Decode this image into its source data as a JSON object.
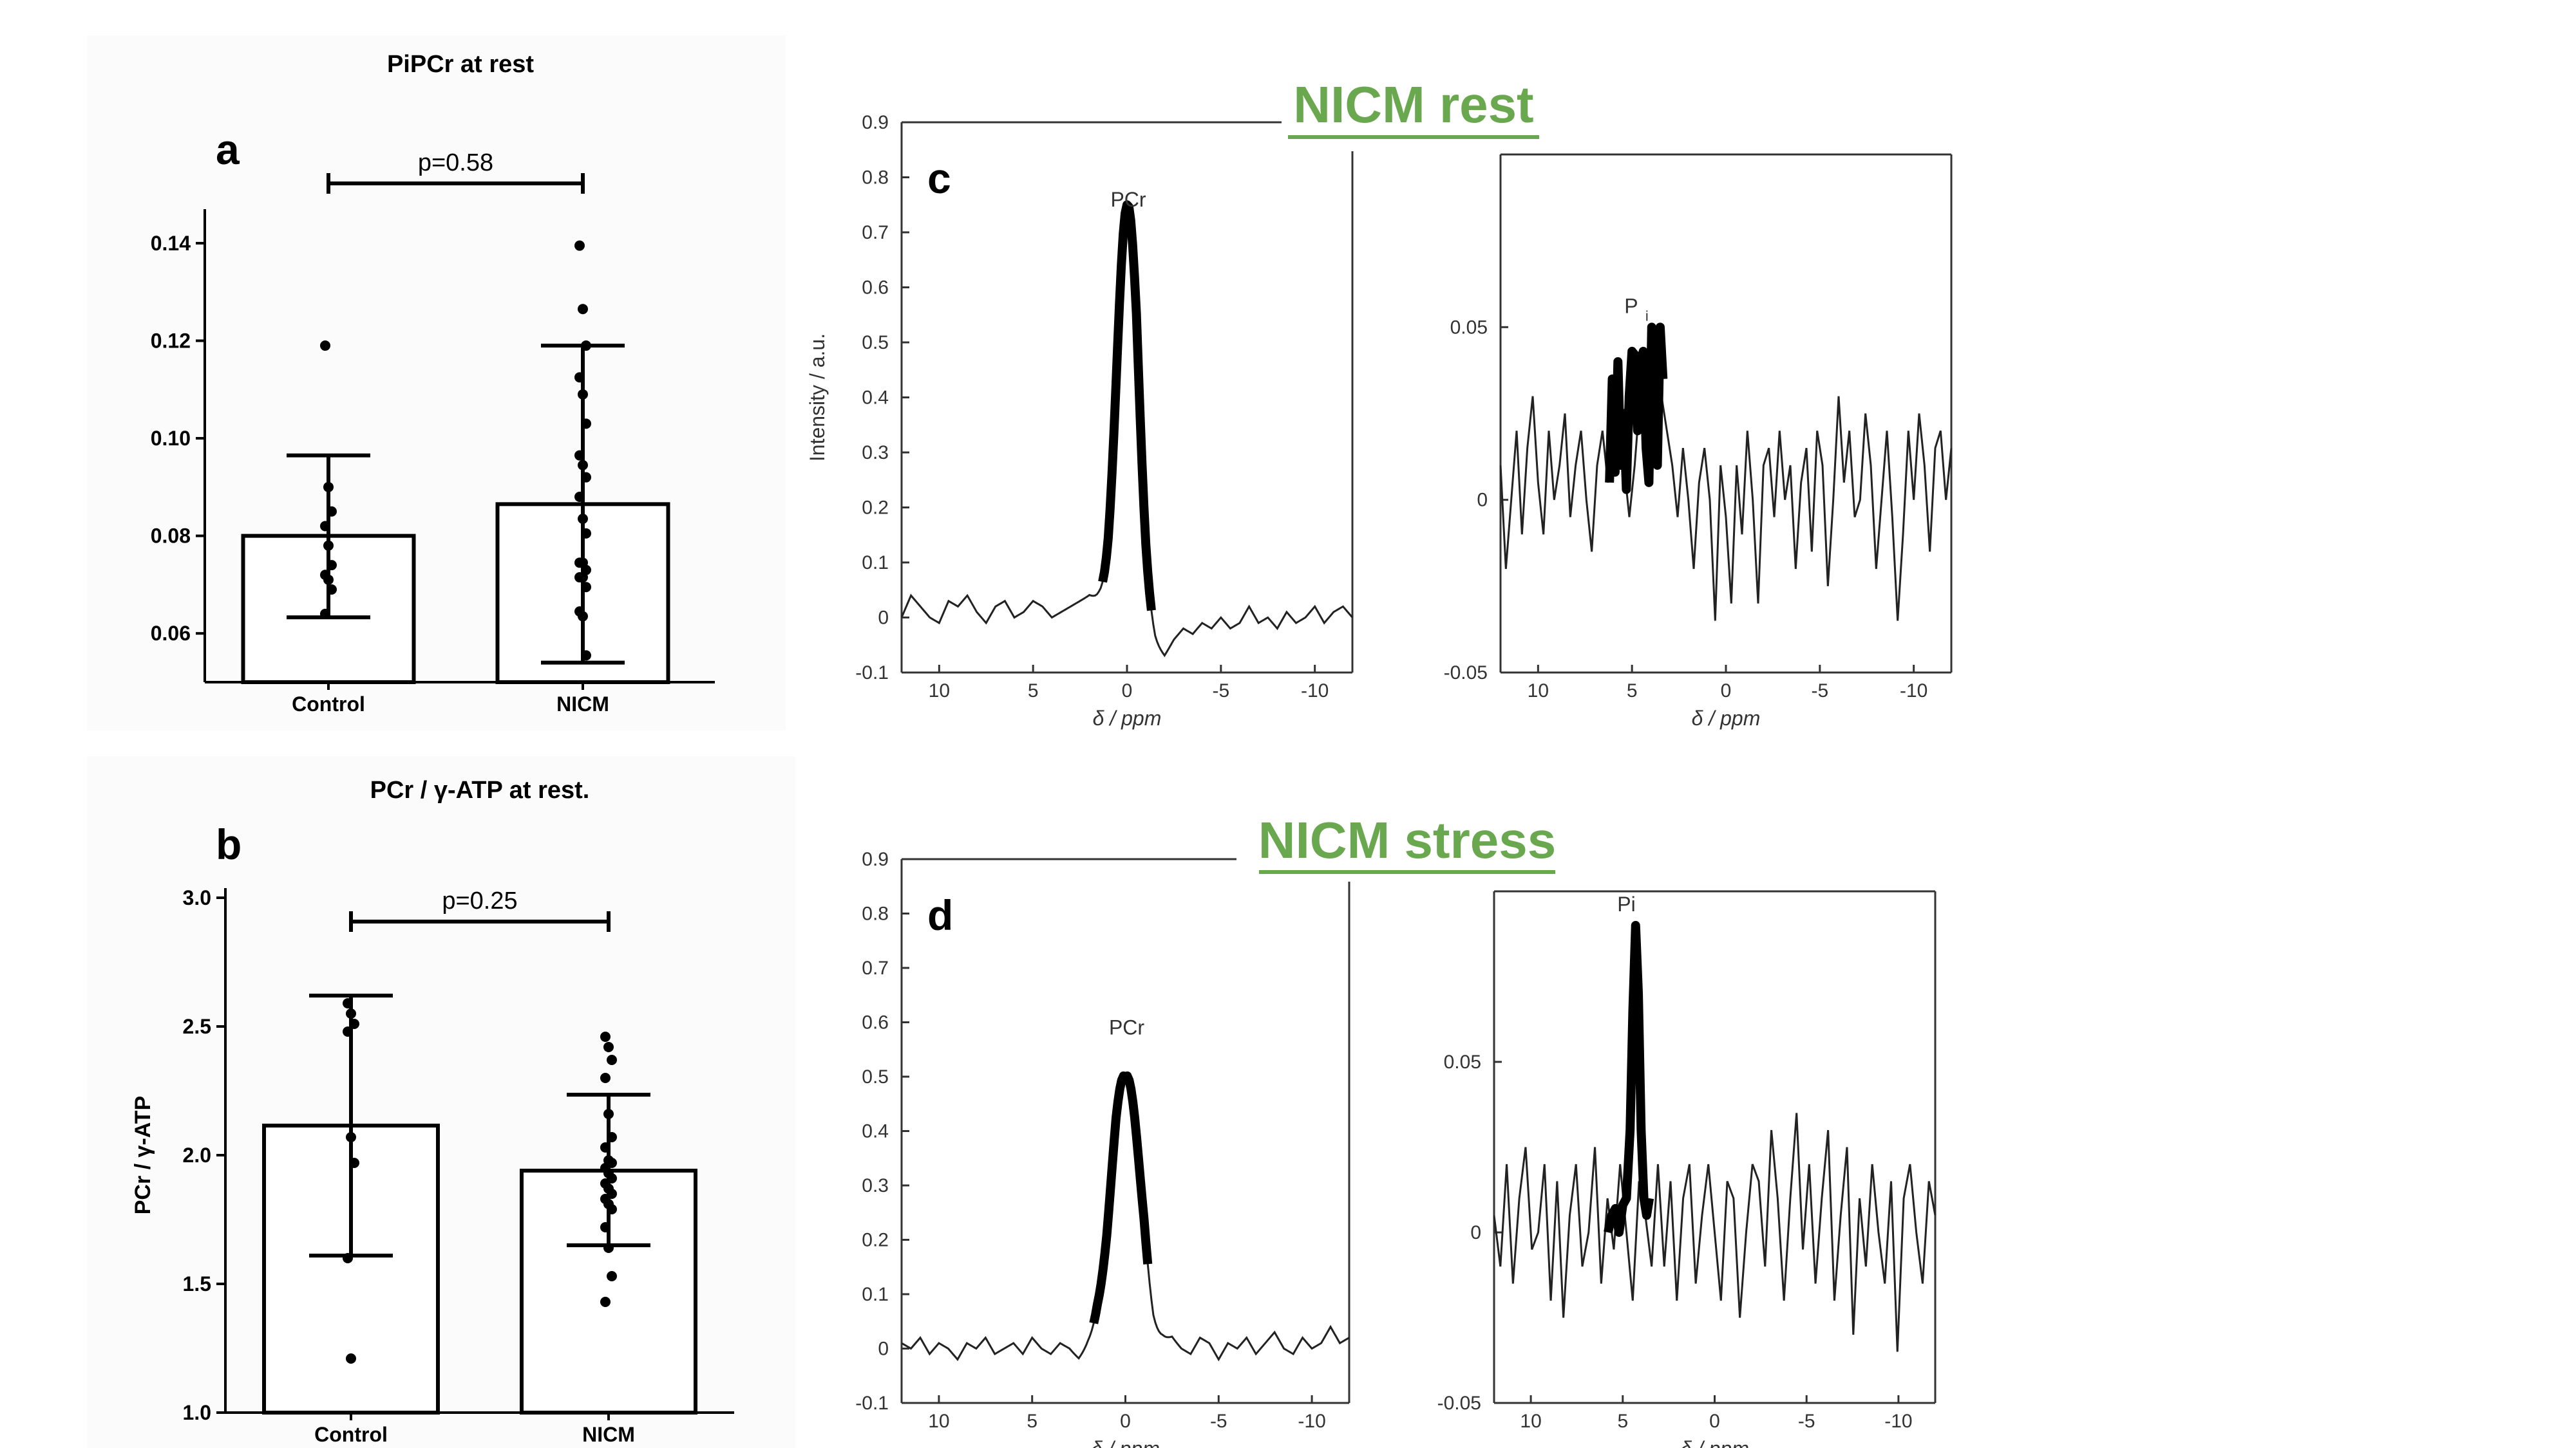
{
  "chart_data": [
    {
      "id": "a",
      "type": "bar",
      "panel_label": "a",
      "title": "PiPCr at rest",
      "xlabel": "",
      "ylabel": "",
      "categories": [
        "Control",
        "NICM"
      ],
      "values": [
        0.08,
        0.0865
      ],
      "error_low": [
        0.0633,
        0.054
      ],
      "error_high": [
        0.0965,
        0.119
      ],
      "points": [
        [
          0.119,
          0.09,
          0.085,
          0.082,
          0.078,
          0.074,
          0.072,
          0.071,
          0.069,
          0.064
        ],
        [
          0.1395,
          0.1265,
          0.119,
          0.1125,
          0.109,
          0.103,
          0.0965,
          0.0945,
          0.092,
          0.088,
          0.0835,
          0.0805,
          0.0745,
          0.0745,
          0.073,
          0.0715,
          0.0715,
          0.0695,
          0.0645,
          0.0635,
          0.0555
        ]
      ],
      "ylim": [
        0.05,
        0.145
      ],
      "yticks": [
        0.06,
        0.08,
        0.1,
        0.12,
        0.14
      ],
      "ytick_labels": [
        "0.06",
        "0.08",
        "0.10",
        "0.12",
        "0.14"
      ],
      "significance": "p=0.58"
    },
    {
      "id": "b",
      "type": "bar",
      "panel_label": "b",
      "title": "PCr / γ-ATP at rest.",
      "xlabel": "",
      "ylabel": "PCr / γ-ATP",
      "categories": [
        "Control",
        "NICM"
      ],
      "values": [
        2.115,
        1.94
      ],
      "error_low": [
        1.61,
        1.65
      ],
      "error_high": [
        2.62,
        2.235
      ],
      "points": [
        [
          2.59,
          2.55,
          2.51,
          2.48,
          2.07,
          1.97,
          1.6,
          1.21
        ],
        [
          2.46,
          2.42,
          2.37,
          2.3,
          2.16,
          2.07,
          2.03,
          1.98,
          1.97,
          1.95,
          1.93,
          1.91,
          1.89,
          1.87,
          1.85,
          1.83,
          1.81,
          1.79,
          1.72,
          1.64,
          1.53,
          1.43
        ]
      ],
      "ylim": [
        1.0,
        3.0
      ],
      "yticks": [
        1.0,
        1.5,
        2.0,
        2.5,
        3.0
      ],
      "ytick_labels": [
        "1.0",
        "1.5",
        "2.0",
        "2.5",
        "3.0"
      ],
      "significance": "p=0.25"
    },
    {
      "id": "c-left",
      "type": "line",
      "heading": "NICM rest",
      "panel_label": "c",
      "title": "",
      "xlabel": "δ / ppm",
      "ylabel": "Intensity / a.u.",
      "peak_label": "PCr",
      "xlim": [
        12,
        -12
      ],
      "ylim": [
        -0.1,
        0.9
      ],
      "xticks": [
        10,
        5,
        0,
        -5,
        -10
      ],
      "xtick_labels": [
        "10",
        "5",
        "0",
        "-5",
        "-10"
      ],
      "yticks": [
        -0.1,
        0,
        0.1,
        0.2,
        0.3,
        0.4,
        0.5,
        0.6,
        0.7,
        0.8,
        0.9
      ],
      "ytick_labels": [
        "-0.1",
        "0",
        "0.1",
        "0.2",
        "0.3",
        "0.4",
        "0.5",
        "0.6",
        "0.7",
        "0.8",
        "0.9"
      ],
      "peak": {
        "center": 0.0,
        "height": 0.7,
        "sigma": 0.55,
        "bold_from": 1.4,
        "bold_to": -1.4
      },
      "baseline": [
        0.0,
        0.04,
        0.02,
        0.0,
        -0.01,
        0.03,
        0.02,
        0.04,
        0.01,
        -0.01,
        0.02,
        0.03,
        0.0,
        0.01,
        0.03,
        0.02,
        0.0,
        0.01,
        0.02,
        0.03,
        0.04,
        0.03,
        0.01,
        0.03,
        0.05,
        0.09,
        0.0,
        -0.05,
        -0.07,
        -0.04,
        -0.02,
        -0.03,
        -0.01,
        -0.02,
        0.0,
        -0.02,
        -0.01,
        0.02,
        -0.01,
        0.0,
        -0.02,
        0.01,
        -0.01,
        0.0,
        0.02,
        -0.01,
        0.01,
        0.02,
        0.0
      ]
    },
    {
      "id": "c-right",
      "type": "line",
      "title": "",
      "xlabel": "δ / ppm",
      "ylabel": "",
      "peak_label": "P",
      "peak_label_sub": "i",
      "xlim": [
        12,
        -12
      ],
      "ylim": [
        -0.05,
        0.1
      ],
      "xticks": [
        10,
        5,
        0,
        -5,
        -10
      ],
      "xtick_labels": [
        "10",
        "5",
        "0",
        "-5",
        "-10"
      ],
      "yticks": [
        -0.05,
        0,
        0.05
      ],
      "ytick_labels": [
        "-0.05",
        "0",
        "0.05"
      ],
      "bold_segment": [
        [
          6.2,
          0.005
        ],
        [
          6.05,
          0.035
        ],
        [
          5.9,
          0.008
        ],
        [
          5.75,
          0.04
        ],
        [
          5.6,
          0.01
        ],
        [
          5.45,
          0.025
        ],
        [
          5.3,
          0.003
        ],
        [
          5.15,
          0.03
        ],
        [
          5.0,
          0.043
        ],
        [
          4.85,
          0.042
        ],
        [
          4.7,
          0.02
        ],
        [
          4.55,
          0.04
        ],
        [
          4.4,
          0.043
        ],
        [
          4.25,
          0.015
        ],
        [
          4.1,
          0.005
        ],
        [
          3.95,
          0.05
        ],
        [
          3.8,
          0.03
        ],
        [
          3.65,
          0.01
        ],
        [
          3.5,
          0.05
        ],
        [
          3.35,
          0.035
        ]
      ],
      "noise": [
        0.01,
        -0.02,
        0.0,
        0.02,
        -0.01,
        0.015,
        0.03,
        0.005,
        -0.01,
        0.02,
        0.0,
        0.01,
        0.025,
        -0.005,
        0.01,
        0.02,
        0.0,
        -0.015,
        0.01,
        0.02,
        0.005,
        0.015,
        0.02,
        0.01,
        -0.005,
        0.01,
        0.03,
        0.015,
        0.005,
        0.02,
        0.03,
        0.02,
        0.01,
        -0.005,
        0.015,
        0.0,
        -0.02,
        0.005,
        0.015,
        0.0,
        -0.035,
        0.01,
        -0.005,
        -0.03,
        0.01,
        -0.01,
        0.02,
        0.0,
        -0.03,
        0.01,
        0.015,
        -0.005,
        0.02,
        0.0,
        0.01,
        -0.02,
        0.005,
        0.015,
        -0.015,
        0.02,
        0.01,
        -0.025,
        0.0,
        0.03,
        0.005,
        0.02,
        -0.005,
        0.0,
        0.025,
        0.01,
        -0.02,
        0.0,
        0.02,
        -0.005,
        -0.035,
        -0.01,
        0.02,
        0.0,
        0.025,
        0.01,
        -0.015,
        0.015,
        0.02,
        0.0,
        0.015
      ]
    },
    {
      "id": "d-left",
      "type": "line",
      "heading": "NICM stress",
      "panel_label": "d",
      "title": "",
      "xlabel": "δ / ppm",
      "ylabel": "",
      "peak_label": "PCr",
      "xlim": [
        12,
        -12
      ],
      "ylim": [
        -0.1,
        0.9
      ],
      "xticks": [
        10,
        5,
        0,
        -5,
        -10
      ],
      "xtick_labels": [
        "10",
        "5",
        "0",
        "-5",
        "-10"
      ],
      "yticks": [
        -0.1,
        0,
        0.1,
        0.2,
        0.3,
        0.4,
        0.5,
        0.6,
        0.7,
        0.8,
        0.9
      ],
      "ytick_labels": [
        "-0.1",
        "0",
        "0.1",
        "0.2",
        "0.3",
        "0.4",
        "0.5",
        "0.6",
        "0.7",
        "0.8",
        "0.9"
      ],
      "peak": {
        "center": 0.0,
        "height": 0.53,
        "sigma": 0.75,
        "bold_from": 1.7,
        "bold_to": -1.2
      },
      "baseline": [
        0.01,
        0.0,
        0.02,
        -0.01,
        0.01,
        0.0,
        -0.02,
        0.01,
        0.0,
        0.02,
        -0.01,
        0.0,
        0.01,
        -0.01,
        0.02,
        0.0,
        -0.01,
        0.01,
        0.0,
        -0.02,
        0.0,
        0.01,
        -0.01,
        0.0,
        -0.03,
        0.0,
        0.02,
        -0.01,
        0.01,
        0.02,
        0.0,
        -0.01,
        0.02,
        0.01,
        -0.02,
        0.01,
        0.0,
        0.02,
        -0.01,
        0.01,
        0.03,
        0.0,
        -0.01,
        0.02,
        0.0,
        0.01,
        0.04,
        0.01,
        0.02
      ]
    },
    {
      "id": "d-right",
      "type": "line",
      "title": "",
      "xlabel": "δ / ppm",
      "ylabel": "",
      "peak_label": "Pi",
      "xlim": [
        12,
        -12
      ],
      "ylim": [
        -0.05,
        0.1
      ],
      "xticks": [
        10,
        5,
        0,
        -5,
        -10
      ],
      "xtick_labels": [
        "10",
        "5",
        "0",
        "-5",
        "-10"
      ],
      "yticks": [
        -0.05,
        0,
        0.05
      ],
      "ytick_labels": [
        "-0.05",
        "0",
        "0.05"
      ],
      "bold_segment": [
        [
          5.8,
          0.0
        ],
        [
          5.6,
          0.005
        ],
        [
          5.4,
          0.007
        ],
        [
          5.2,
          0.0
        ],
        [
          5.0,
          0.008
        ],
        [
          4.8,
          0.01
        ],
        [
          4.6,
          0.03
        ],
        [
          4.45,
          0.065
        ],
        [
          4.3,
          0.09
        ],
        [
          4.15,
          0.07
        ],
        [
          4.0,
          0.03
        ],
        [
          3.85,
          0.01
        ],
        [
          3.7,
          0.005
        ],
        [
          3.55,
          0.01
        ]
      ],
      "noise": [
        0.005,
        -0.01,
        0.02,
        -0.015,
        0.01,
        0.025,
        -0.005,
        0.0,
        0.02,
        -0.02,
        0.015,
        -0.025,
        0.005,
        0.02,
        -0.01,
        0.0,
        0.025,
        -0.015,
        0.01,
        -0.005,
        0.02,
        0.0,
        -0.02,
        0.015,
        0.005,
        -0.01,
        0.02,
        -0.01,
        0.015,
        -0.02,
        0.01,
        0.02,
        -0.015,
        0.005,
        0.02,
        0.0,
        -0.02,
        0.015,
        0.01,
        -0.025,
        0.0,
        0.02,
        0.015,
        -0.01,
        0.03,
        0.01,
        -0.02,
        0.01,
        0.035,
        -0.005,
        0.02,
        -0.015,
        0.01,
        0.03,
        -0.02,
        0.005,
        0.025,
        -0.03,
        0.01,
        -0.01,
        0.02,
        0.0,
        -0.015,
        0.015,
        -0.035,
        0.01,
        0.02,
        0.0,
        -0.015,
        0.015,
        0.005
      ]
    }
  ]
}
